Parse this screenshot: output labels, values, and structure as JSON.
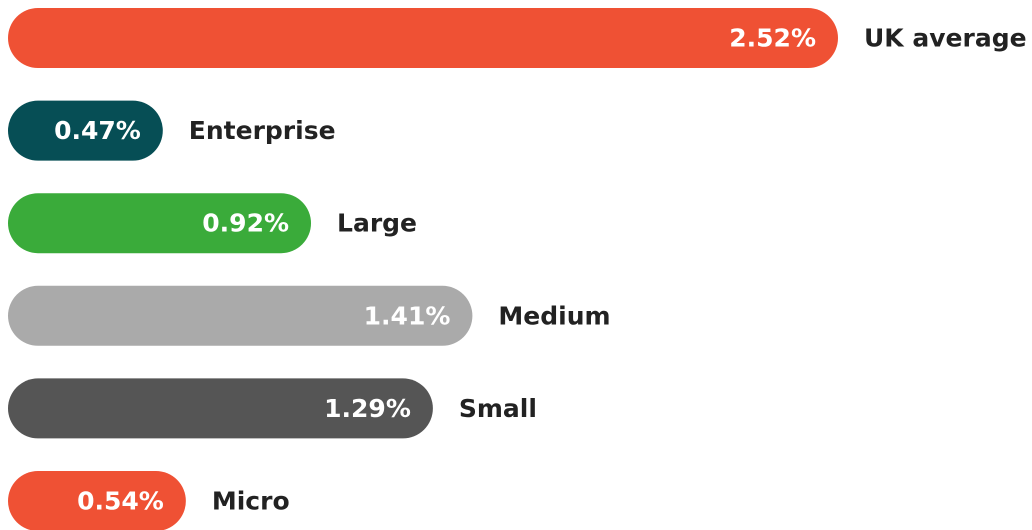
{
  "chart_data": {
    "type": "bar",
    "categories": [
      "UK average",
      "Enterprise",
      "Large",
      "Medium",
      "Small",
      "Micro"
    ],
    "values": [
      2.52,
      0.47,
      0.92,
      1.41,
      1.29,
      0.54
    ],
    "value_labels": [
      "2.52%",
      "0.47%",
      "0.92%",
      "1.41%",
      "1.29%",
      "0.54%"
    ],
    "colors": [
      "#ef5134",
      "#064e55",
      "#3aab3a",
      "#aaaaaa",
      "#555555",
      "#ef5134"
    ]
  }
}
